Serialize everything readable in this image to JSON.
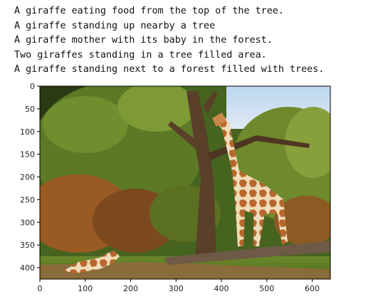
{
  "captions": [
    "A giraffe eating food from the top of the tree.",
    "A giraffe standing up nearby a tree",
    "A giraffe mother with its baby in the forest.",
    "Two giraffes standing in a tree filled area.",
    "A giraffe standing next to a forest filled with trees."
  ],
  "image_axes": {
    "x_ticks": [
      "0",
      "100",
      "200",
      "300",
      "400",
      "500",
      "600"
    ],
    "y_ticks": [
      "0",
      "50",
      "100",
      "150",
      "200",
      "250",
      "300",
      "350",
      "400"
    ],
    "image_description_icon": "giraffe-photo"
  }
}
